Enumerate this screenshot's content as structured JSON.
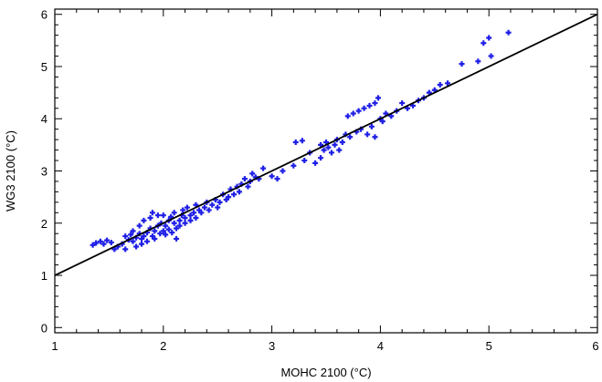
{
  "chart_data": {
    "type": "scatter",
    "title": "",
    "xlabel": "MOHC 2100 (°C)",
    "ylabel": "WG3 2100 (°C)",
    "xlim": [
      1,
      6
    ],
    "ylim": [
      -0.1,
      6.1
    ],
    "xticks": [
      "1",
      "2",
      "3",
      "4",
      "5",
      "6"
    ],
    "yticks": [
      "0",
      "1",
      "2",
      "3",
      "4",
      "5",
      "6"
    ],
    "grid": false,
    "legend": "none",
    "marker_color": "#1f1fe6",
    "line_color": "#000000",
    "reference_line": {
      "slope": 1,
      "intercept": 0
    },
    "series": [
      {
        "points": [
          [
            1.35,
            1.58
          ],
          [
            1.38,
            1.62
          ],
          [
            1.42,
            1.65
          ],
          [
            1.45,
            1.6
          ],
          [
            1.48,
            1.67
          ],
          [
            1.52,
            1.63
          ],
          [
            1.55,
            1.5
          ],
          [
            1.58,
            1.55
          ],
          [
            1.62,
            1.6
          ],
          [
            1.65,
            1.75
          ],
          [
            1.65,
            1.5
          ],
          [
            1.68,
            1.68
          ],
          [
            1.7,
            1.78
          ],
          [
            1.72,
            1.85
          ],
          [
            1.72,
            1.65
          ],
          [
            1.75,
            1.72
          ],
          [
            1.75,
            1.55
          ],
          [
            1.78,
            1.8
          ],
          [
            1.78,
            1.95
          ],
          [
            1.8,
            1.7
          ],
          [
            1.8,
            1.6
          ],
          [
            1.82,
            2.05
          ],
          [
            1.82,
            1.75
          ],
          [
            1.85,
            1.82
          ],
          [
            1.85,
            1.65
          ],
          [
            1.88,
            1.9
          ],
          [
            1.88,
            2.1
          ],
          [
            1.9,
            1.75
          ],
          [
            1.9,
            2.2
          ],
          [
            1.92,
            1.85
          ],
          [
            1.92,
            1.7
          ],
          [
            1.95,
            1.95
          ],
          [
            1.95,
            2.15
          ],
          [
            1.97,
            1.8
          ],
          [
            1.98,
            2.0
          ],
          [
            2.0,
            1.85
          ],
          [
            2.0,
            2.15
          ],
          [
            2.02,
            1.78
          ],
          [
            2.02,
            1.95
          ],
          [
            2.05,
            2.05
          ],
          [
            2.05,
            1.88
          ],
          [
            2.07,
            2.12
          ],
          [
            2.08,
            1.82
          ],
          [
            2.1,
            2.0
          ],
          [
            2.1,
            2.2
          ],
          [
            2.12,
            1.9
          ],
          [
            2.12,
            1.7
          ],
          [
            2.15,
            2.05
          ],
          [
            2.15,
            1.95
          ],
          [
            2.17,
            2.15
          ],
          [
            2.18,
            2.25
          ],
          [
            2.2,
            2.0
          ],
          [
            2.2,
            2.1
          ],
          [
            2.22,
            2.3
          ],
          [
            2.25,
            2.15
          ],
          [
            2.25,
            2.05
          ],
          [
            2.28,
            2.2
          ],
          [
            2.3,
            2.35
          ],
          [
            2.3,
            2.1
          ],
          [
            2.33,
            2.25
          ],
          [
            2.35,
            2.2
          ],
          [
            2.38,
            2.3
          ],
          [
            2.4,
            2.4
          ],
          [
            2.42,
            2.25
          ],
          [
            2.45,
            2.35
          ],
          [
            2.48,
            2.45
          ],
          [
            2.5,
            2.3
          ],
          [
            2.52,
            2.4
          ],
          [
            2.55,
            2.55
          ],
          [
            2.58,
            2.45
          ],
          [
            2.6,
            2.5
          ],
          [
            2.62,
            2.65
          ],
          [
            2.65,
            2.55
          ],
          [
            2.68,
            2.7
          ],
          [
            2.7,
            2.6
          ],
          [
            2.72,
            2.75
          ],
          [
            2.75,
            2.85
          ],
          [
            2.78,
            2.7
          ],
          [
            2.8,
            2.8
          ],
          [
            2.82,
            2.95
          ],
          [
            2.85,
            2.88
          ],
          [
            2.88,
            2.85
          ],
          [
            2.92,
            3.05
          ],
          [
            3.0,
            2.9
          ],
          [
            3.05,
            2.85
          ],
          [
            3.1,
            3.0
          ],
          [
            3.2,
            3.1
          ],
          [
            3.22,
            3.55
          ],
          [
            3.28,
            3.58
          ],
          [
            3.3,
            3.2
          ],
          [
            3.35,
            3.35
          ],
          [
            3.4,
            3.15
          ],
          [
            3.45,
            3.25
          ],
          [
            3.45,
            3.5
          ],
          [
            3.48,
            3.4
          ],
          [
            3.5,
            3.55
          ],
          [
            3.52,
            3.45
          ],
          [
            3.55,
            3.35
          ],
          [
            3.58,
            3.5
          ],
          [
            3.6,
            3.6
          ],
          [
            3.62,
            3.4
          ],
          [
            3.65,
            3.55
          ],
          [
            3.68,
            3.7
          ],
          [
            3.7,
            4.05
          ],
          [
            3.72,
            3.65
          ],
          [
            3.75,
            4.1
          ],
          [
            3.78,
            3.75
          ],
          [
            3.8,
            4.15
          ],
          [
            3.82,
            3.8
          ],
          [
            3.85,
            4.2
          ],
          [
            3.88,
            3.7
          ],
          [
            3.9,
            4.25
          ],
          [
            3.92,
            3.85
          ],
          [
            3.95,
            4.3
          ],
          [
            3.95,
            3.65
          ],
          [
            3.98,
            4.4
          ],
          [
            4.0,
            4.0
          ],
          [
            4.02,
            3.95
          ],
          [
            4.05,
            4.1
          ],
          [
            4.1,
            4.05
          ],
          [
            4.15,
            4.15
          ],
          [
            4.2,
            4.3
          ],
          [
            4.25,
            4.2
          ],
          [
            4.3,
            4.25
          ],
          [
            4.35,
            4.35
          ],
          [
            4.4,
            4.4
          ],
          [
            4.45,
            4.5
          ],
          [
            4.5,
            4.55
          ],
          [
            4.55,
            4.65
          ],
          [
            4.62,
            4.68
          ],
          [
            4.75,
            5.05
          ],
          [
            4.9,
            5.1
          ],
          [
            4.95,
            5.45
          ],
          [
            5.0,
            5.55
          ],
          [
            5.02,
            5.2
          ],
          [
            5.18,
            5.65
          ]
        ]
      }
    ]
  }
}
